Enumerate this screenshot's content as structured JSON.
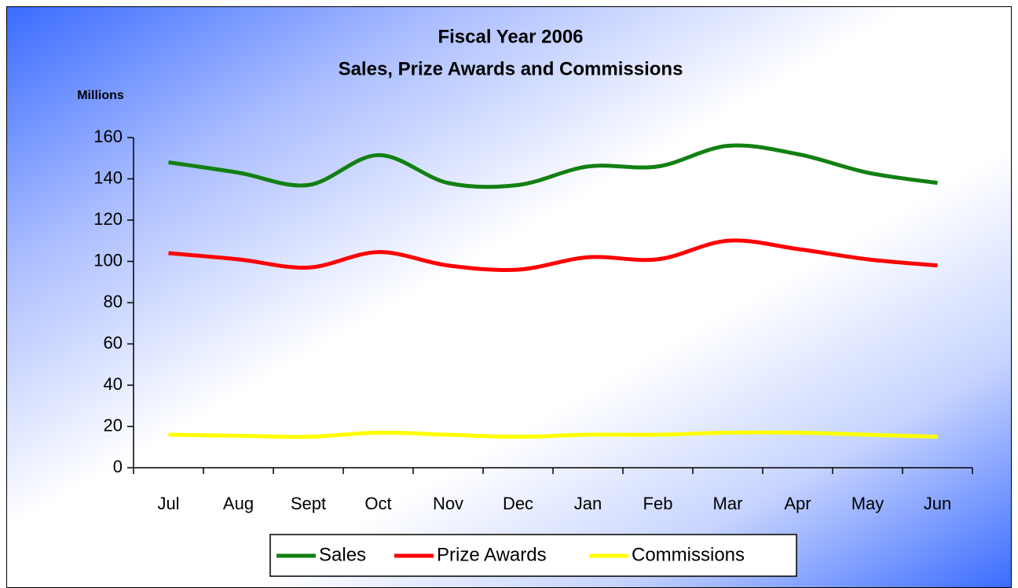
{
  "chart_data": {
    "type": "line",
    "title": "Fiscal Year 2006",
    "subtitle": "Sales, Prize Awards and Commissions",
    "y_label": "Millions",
    "categories": [
      "Jul",
      "Aug",
      "Sept",
      "Oct",
      "Nov",
      "Dec",
      "Jan",
      "Feb",
      "Mar",
      "Apr",
      "May",
      "Jun"
    ],
    "series": [
      {
        "name": "Sales",
        "color": "#128012",
        "values": [
          148,
          143,
          137,
          151.5,
          138,
          137,
          146,
          146,
          156,
          152,
          143,
          138
        ]
      },
      {
        "name": "Prize Awards",
        "color": "#ff0000",
        "values": [
          104,
          101,
          97,
          104.5,
          98,
          96,
          102,
          101,
          110,
          106,
          101,
          98
        ]
      },
      {
        "name": "Commissions",
        "color": "#ffff00",
        "values": [
          16,
          15.5,
          15,
          17,
          16,
          15,
          16,
          16,
          17,
          17,
          16,
          15
        ]
      }
    ],
    "ylim": [
      0,
      160
    ],
    "yticks": [
      0,
      20,
      40,
      60,
      80,
      100,
      120,
      140,
      160
    ],
    "legend": "bottom"
  }
}
